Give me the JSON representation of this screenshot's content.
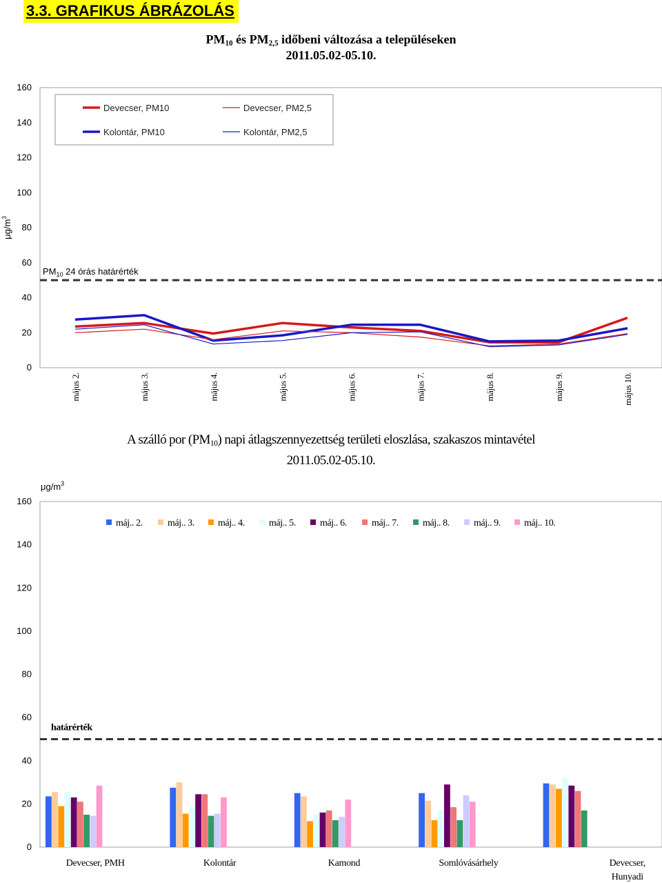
{
  "heading": "3.3. GRAFIKUS ÁBRÁZOLÁS",
  "colors": {
    "heading_bg": "#ffff00",
    "dev_pm": "#d81818",
    "kol_pm": "#1818c8"
  },
  "chart_data": [
    {
      "type": "line",
      "title": {
        "p1": "PM",
        "p1_sub": "10",
        "p2": " és PM",
        "p2_sub": "2,5",
        "p3": " időbeni változása a településeken"
      },
      "subtitle": "2011.05.02-05.10.",
      "ylabel": {
        "text": "μg/m",
        "sup": "3"
      },
      "ylim": [
        0,
        160
      ],
      "yticks": [
        0,
        20,
        40,
        60,
        80,
        100,
        120,
        140,
        160
      ],
      "categories": [
        "május 2.",
        "május 3.",
        "május 4.",
        "május 5.",
        "május 6.",
        "május 7.",
        "május 8.",
        "május 9.",
        "május 10."
      ],
      "series": [
        {
          "name": "Devecser, PM10",
          "color": "#d81818",
          "width": 3.5,
          "values": [
            23.5,
            25.5,
            19.5,
            25.5,
            23.0,
            21.0,
            14.5,
            14.5,
            28.5
          ]
        },
        {
          "name": "Devecser, PM2,5",
          "color": "#d81818",
          "width": 1.2,
          "values": [
            20.0,
            22.0,
            16.0,
            21.0,
            20.0,
            17.5,
            12.5,
            13.5,
            19.5
          ]
        },
        {
          "name": "Kolontár, PM10",
          "color": "#1818c8",
          "width": 3.5,
          "values": [
            27.5,
            30.0,
            15.5,
            18.5,
            24.5,
            24.5,
            15.0,
            15.5,
            22.5
          ]
        },
        {
          "name": "Kolontár, PM2,5",
          "color": "#1818c8",
          "width": 1.2,
          "values": [
            22.0,
            24.5,
            13.5,
            15.5,
            20.0,
            20.5,
            12.0,
            13.0,
            19.0
          ]
        }
      ],
      "threshold": {
        "value": 50,
        "label": {
          "p1": "PM",
          "p1_sub": "10",
          "p2": " 24 órás határérték"
        }
      },
      "legend": "top-left"
    },
    {
      "type": "bar",
      "title": {
        "p1": "A szálló por (PM",
        "p1_sub": "10",
        "p2": ") napi átlagszennyezettség területi eloszlása, szakaszos mintavétel"
      },
      "subtitle": "2011.05.02-05.10.",
      "ylabel": {
        "text": "μg/m",
        "sup": "3"
      },
      "ylim": [
        0,
        160
      ],
      "yticks": [
        0,
        20,
        40,
        60,
        80,
        100,
        120,
        140,
        160
      ],
      "categories": [
        "Devecser, PMH",
        "Kolontár",
        "Kamond",
        "Somlóvásárhely",
        "Devecser, Hunyadi"
      ],
      "series": [
        {
          "name": "máj.. 2.",
          "color": "#3366ee",
          "values": [
            23.5,
            27.5,
            25.0,
            25.0,
            29.5
          ]
        },
        {
          "name": "máj.. 3.",
          "color": "#ffcc99",
          "values": [
            25.5,
            30.0,
            23.5,
            21.5,
            29.0
          ]
        },
        {
          "name": "máj.. 4.",
          "color": "#ff9900",
          "values": [
            19.0,
            15.5,
            12.0,
            12.5,
            27.0
          ]
        },
        {
          "name": "máj.. 5.",
          "color": "#ddffff",
          "values": [
            25.5,
            18.5,
            15.5,
            17.0,
            32.0
          ]
        },
        {
          "name": "máj.. 6.",
          "color": "#660066",
          "values": [
            23.0,
            24.5,
            16.0,
            29.0,
            28.5
          ]
        },
        {
          "name": "máj.. 7.",
          "color": "#ee7777",
          "values": [
            21.0,
            24.5,
            17.0,
            18.5,
            26.0
          ]
        },
        {
          "name": "máj.. 8.",
          "color": "#339966",
          "values": [
            15.0,
            14.5,
            12.5,
            12.5,
            17.0
          ]
        },
        {
          "name": "máj.. 9.",
          "color": "#ccccff",
          "values": [
            14.5,
            15.5,
            14.0,
            24.0,
            0
          ]
        },
        {
          "name": "máj.. 10.",
          "color": "#ff99cc",
          "values": [
            28.5,
            23.0,
            22.0,
            21.0,
            0
          ]
        }
      ],
      "threshold": {
        "value": 50,
        "label": "határérték"
      },
      "legend": "top"
    }
  ]
}
